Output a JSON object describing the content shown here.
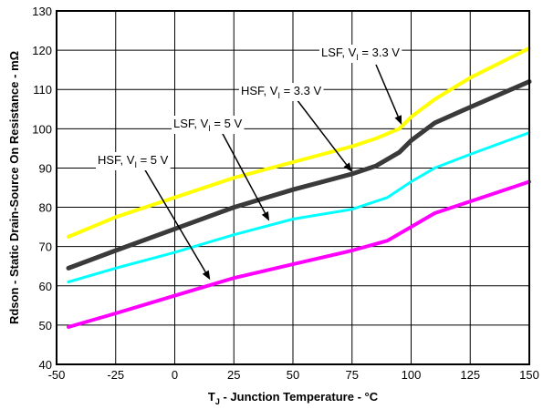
{
  "chart_data": {
    "type": "line",
    "title": "",
    "xlabel_main": "T",
    "xlabel_sub": "J",
    "xlabel_rest": " - Junction Temperature - °C",
    "ylabel": "Rdson - Static Drain-Source On Resistance - mΩ",
    "xlim": [
      -50,
      150
    ],
    "ylim": [
      40,
      130
    ],
    "xticks": [
      -50,
      -25,
      0,
      25,
      50,
      75,
      100,
      125,
      150
    ],
    "yticks": [
      40,
      50,
      60,
      70,
      80,
      90,
      100,
      110,
      120,
      130
    ],
    "grid": true,
    "series": [
      {
        "name": "LSF, VI = 3.3 V",
        "color": "#ffff00",
        "width": 4,
        "x": [
          -45,
          -25,
          0,
          25,
          50,
          75,
          85,
          95,
          100,
          110,
          125,
          150
        ],
        "y": [
          72.5,
          77.5,
          82.5,
          87.5,
          91.5,
          95.5,
          97.5,
          100,
          103,
          107.5,
          113,
          120.5
        ]
      },
      {
        "name": "HSF, VI = 3.3 V",
        "color": "#3a3a3a",
        "width": 5,
        "x": [
          -45,
          -25,
          0,
          25,
          50,
          75,
          85,
          95,
          100,
          110,
          125,
          150
        ],
        "y": [
          64.5,
          69,
          74.5,
          80,
          84.5,
          88.5,
          90.5,
          94,
          97,
          101.5,
          105.5,
          112
        ]
      },
      {
        "name": "LSF, VI = 5 V",
        "color": "#00ffff",
        "width": 3,
        "x": [
          -45,
          -25,
          0,
          25,
          50,
          75,
          90,
          100,
          110,
          125,
          150
        ],
        "y": [
          61,
          64.5,
          68.5,
          73,
          77,
          79.5,
          82.5,
          86.5,
          90,
          93.5,
          99
        ]
      },
      {
        "name": "HSF, VI = 5 V",
        "color": "#ff00ff",
        "width": 4,
        "x": [
          -45,
          -25,
          0,
          25,
          50,
          75,
          90,
          100,
          110,
          125,
          150
        ],
        "y": [
          49.5,
          53,
          57.5,
          62,
          65.5,
          69,
          71.5,
          75,
          78.5,
          81.5,
          86.5
        ]
      }
    ],
    "annotations": [
      {
        "main": "LSF, V",
        "sub": "I",
        "rest": " = 3.3 V"
      },
      {
        "main": "HSF, V",
        "sub": "I",
        "rest": " = 3.3 V"
      },
      {
        "main": "LSF, V",
        "sub": "I",
        "rest": " = 5 V"
      },
      {
        "main": "HSF, V",
        "sub": "I",
        "rest": " = 5 V"
      }
    ]
  }
}
